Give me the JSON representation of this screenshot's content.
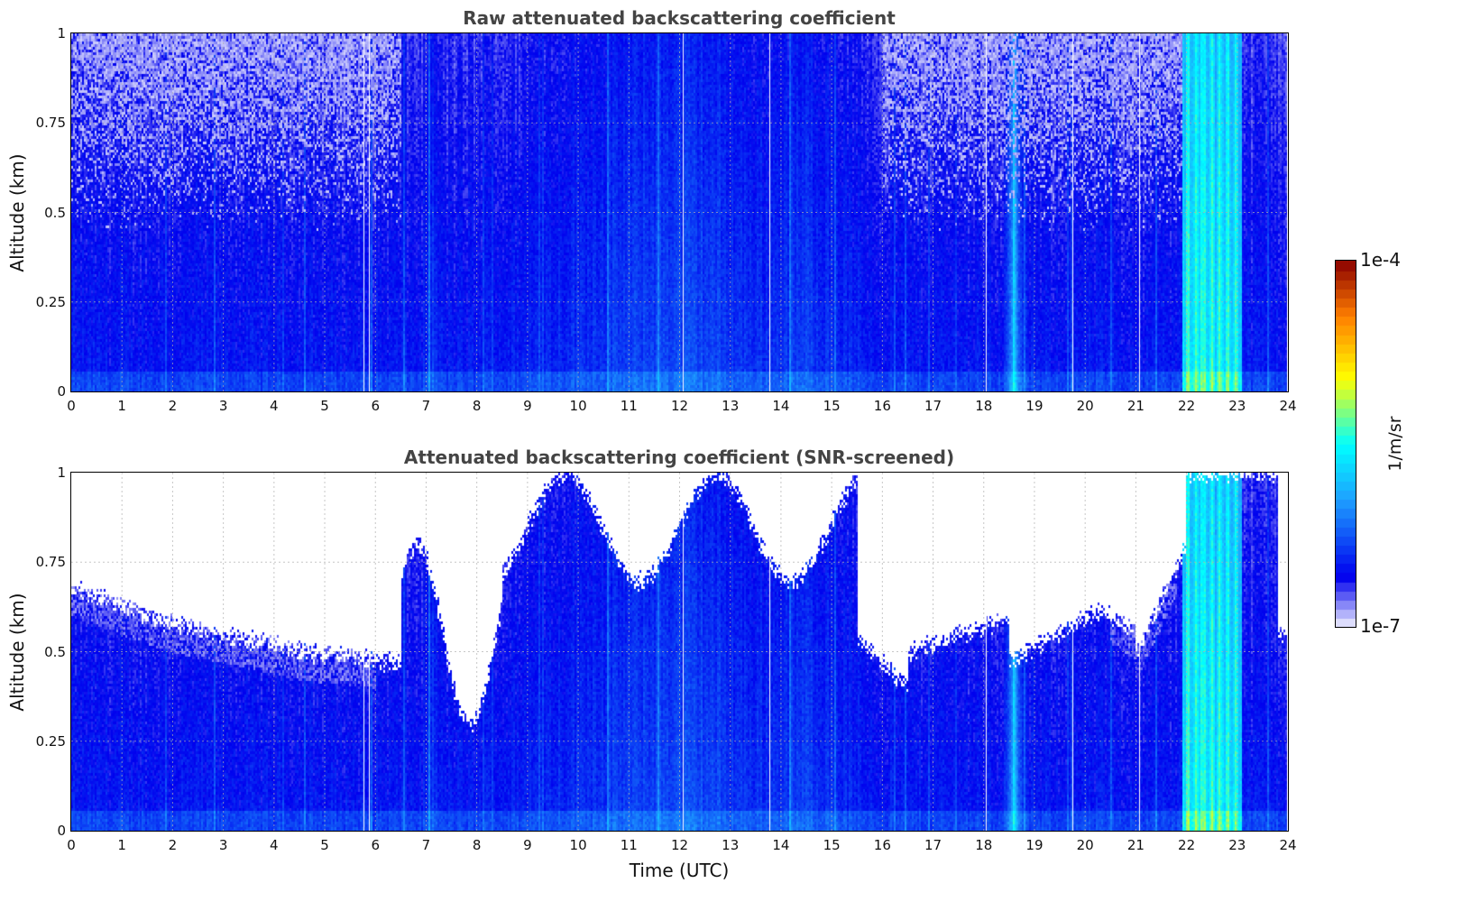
{
  "chart_data": [
    {
      "type": "heatmap",
      "title": "Raw attenuated backscattering coefficient",
      "xlabel": "",
      "ylabel": "Altitude (km)",
      "xlim": [
        0,
        24
      ],
      "ylim": [
        0,
        1
      ],
      "xticks": [
        "0",
        "1",
        "2",
        "3",
        "4",
        "5",
        "6",
        "7",
        "8",
        "9",
        "10",
        "11",
        "12",
        "13",
        "14",
        "15",
        "16",
        "17",
        "18",
        "19",
        "20",
        "21",
        "22",
        "23",
        "24"
      ],
      "yticks": [
        "0",
        "0.25",
        "0.5",
        "0.75",
        "1"
      ],
      "grid": true,
      "screened": false
    },
    {
      "type": "heatmap",
      "title": "Attenuated backscattering coefficient (SNR-screened)",
      "xlabel": "Time (UTC)",
      "ylabel": "Altitude (km)",
      "xlim": [
        0,
        24
      ],
      "ylim": [
        0,
        1
      ],
      "xticks": [
        "0",
        "1",
        "2",
        "3",
        "4",
        "5",
        "6",
        "7",
        "8",
        "9",
        "10",
        "11",
        "12",
        "13",
        "14",
        "15",
        "16",
        "17",
        "18",
        "19",
        "20",
        "21",
        "22",
        "23",
        "24"
      ],
      "yticks": [
        "0",
        "0.25",
        "0.5",
        "0.75",
        "1"
      ],
      "grid": true,
      "screened": true
    }
  ],
  "colorbar": {
    "min_label": "1e-7",
    "max_label": "1e-4",
    "unit": "1/m/sr",
    "scale": "log",
    "colors": [
      "#f3f3ff",
      "#0000ee",
      "#1ea0ff",
      "#00ffff",
      "#ffff00",
      "#ff7f00",
      "#8b0000"
    ]
  }
}
